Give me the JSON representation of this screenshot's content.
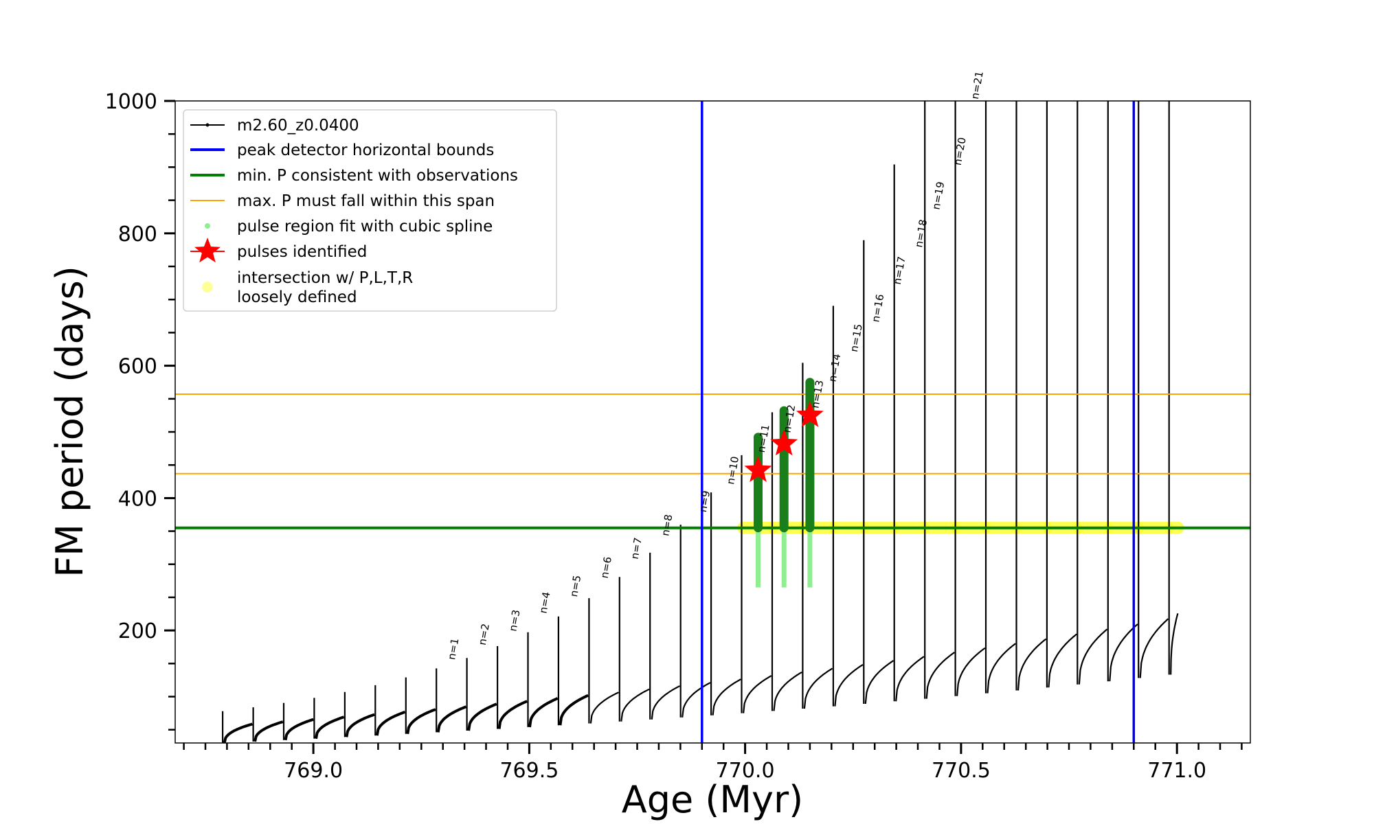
{
  "chart_data": {
    "type": "line",
    "xlabel": "Age (Myr)",
    "ylabel": "FM period (days)",
    "xlim": [
      768.68,
      771.17
    ],
    "ylim": [
      30,
      1000
    ],
    "xticks": [
      "769.0",
      "769.5",
      "770.0",
      "770.5",
      "771.0"
    ],
    "xtick_values": [
      769.0,
      769.5,
      770.0,
      770.5,
      771.0
    ],
    "yticks": [
      "200",
      "400",
      "600",
      "800",
      "1000"
    ],
    "ytick_values": [
      200,
      400,
      600,
      800,
      1000
    ],
    "track_start_age": 768.79,
    "pulse_interval_myr": 0.0707,
    "pulse_count": 32,
    "track_end_age": 771.0,
    "vlines": [
      769.9,
      770.9
    ],
    "hline_min_period": 355,
    "hlines_max_period_span": [
      437,
      557
    ],
    "pulses_identified": [
      {
        "age": 770.03,
        "period": 442
      },
      {
        "age": 770.09,
        "period": 482
      },
      {
        "age": 770.15,
        "period": 525
      }
    ],
    "pulse_labels": [
      {
        "text": "n=1",
        "age": 769.318,
        "period": 155
      },
      {
        "text": "n=2",
        "age": 769.389,
        "period": 177
      },
      {
        "text": "n=3",
        "age": 769.46,
        "period": 198
      },
      {
        "text": "n=4",
        "age": 769.53,
        "period": 225
      },
      {
        "text": "n=5",
        "age": 769.601,
        "period": 250
      },
      {
        "text": "n=6",
        "age": 769.672,
        "period": 278
      },
      {
        "text": "n=7",
        "age": 769.742,
        "period": 307
      },
      {
        "text": "n=8",
        "age": 769.813,
        "period": 342
      },
      {
        "text": "n=9",
        "age": 769.9,
        "period": 378
      },
      {
        "text": "n=10",
        "age": 769.964,
        "period": 420
      },
      {
        "text": "n=11",
        "age": 770.035,
        "period": 468
      },
      {
        "text": "n=12",
        "age": 770.095,
        "period": 498
      },
      {
        "text": "n=13",
        "age": 770.16,
        "period": 535
      },
      {
        "text": "n=14",
        "age": 770.2,
        "period": 575
      },
      {
        "text": "n=15",
        "age": 770.25,
        "period": 620
      },
      {
        "text": "n=16",
        "age": 770.3,
        "period": 665
      },
      {
        "text": "n=17",
        "age": 770.35,
        "period": 722
      },
      {
        "text": "n=18",
        "age": 770.4,
        "period": 778
      },
      {
        "text": "n=19",
        "age": 770.44,
        "period": 835
      },
      {
        "text": "n=20",
        "age": 770.49,
        "period": 902
      },
      {
        "text": "n=21",
        "age": 770.53,
        "period": 1002
      }
    ],
    "legend": {
      "placement": "top-left",
      "entries": [
        {
          "label": "m2.60_z0.0400",
          "color": "#000000",
          "kind": "line-dot"
        },
        {
          "label": "peak detector horizontal bounds",
          "color": "#0000ff",
          "kind": "line"
        },
        {
          "label": "min. P consistent with observations",
          "color": "#008000",
          "kind": "line"
        },
        {
          "label": "max. P must fall within this span",
          "color": "#ffa500",
          "kind": "thin-line"
        },
        {
          "label": "pulse region fit with cubic spline",
          "color": "#90ee90",
          "kind": "dot"
        },
        {
          "label": "pulses identified",
          "color": "#ff0000",
          "kind": "star"
        },
        {
          "label": "intersection w/ P,L,T,R",
          "color": "#ffff99",
          "kind": "circle"
        },
        {
          "label": "loosely defined",
          "color": "#ffff99",
          "kind": "circle"
        }
      ]
    },
    "colors": {
      "track": "#000000",
      "bounds": "#0000ff",
      "min_period": "#008000",
      "max_period_span": "#ffa500",
      "spline": "#90ee90",
      "spline_dark": "#1a7f1a",
      "pulses": "#ff0000",
      "intersection": "#ffff33"
    },
    "grid": false
  }
}
